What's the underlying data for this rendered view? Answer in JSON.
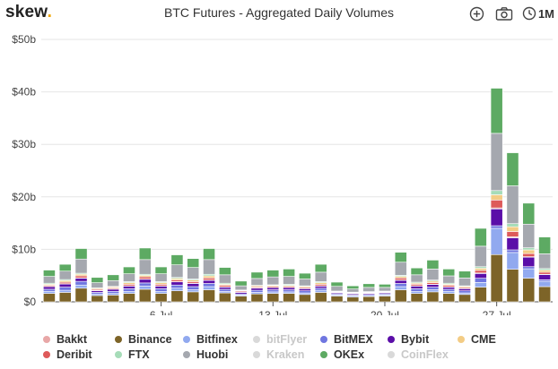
{
  "header": {
    "logo_text": "skew",
    "logo_dot": ".",
    "title": "BTC Futures - Aggregated Daily Volumes",
    "range_label": "1M",
    "icons": [
      "plus-circle-icon",
      "camera-icon",
      "clock-icon"
    ]
  },
  "colors": {
    "Bakkt": "#e8a7a7",
    "Binance": "#7d6428",
    "Bitfinex": "#91a9ef",
    "bitFlyer": "#d9d9d9",
    "BitMEX": "#6f76e0",
    "Bybit": "#5b0ea8",
    "CME": "#f3cc85",
    "Deribit": "#de5a5a",
    "FTX": "#a6dcb8",
    "Huobi": "#a5a8af",
    "Kraken": "#d9d9d9",
    "OKEx": "#5daa63",
    "CoinFlex": "#d9d9d9"
  },
  "legend": {
    "row1": [
      {
        "name": "Bakkt",
        "hidden": false
      },
      {
        "name": "Binance",
        "hidden": false
      },
      {
        "name": "Bitfinex",
        "hidden": false
      },
      {
        "name": "bitFlyer",
        "hidden": true
      },
      {
        "name": "BitMEX",
        "hidden": false
      },
      {
        "name": "Bybit",
        "hidden": false
      },
      {
        "name": "CME",
        "hidden": false
      }
    ],
    "row2": [
      {
        "name": "Deribit",
        "hidden": false
      },
      {
        "name": "FTX",
        "hidden": false
      },
      {
        "name": "Huobi",
        "hidden": false
      },
      {
        "name": "Kraken",
        "hidden": true
      },
      {
        "name": "OKEx",
        "hidden": false
      },
      {
        "name": "CoinFlex",
        "hidden": true
      }
    ]
  },
  "chart_data": {
    "type": "bar",
    "stacked": true,
    "title": "BTC Futures - Aggregated Daily Volumes",
    "x_tick_labels": [
      "6 Jul",
      "13 Jul",
      "20 Jul",
      "27 Jul"
    ],
    "x_tick_indices": [
      7,
      14,
      21,
      28
    ],
    "y_tick_labels": [
      "$0",
      "$10b",
      "$20b",
      "$30b",
      "$40b",
      "$50b"
    ],
    "ylim": [
      0,
      50
    ],
    "grid": "horizontal",
    "legend_position": "bottom",
    "stack_order": [
      "Binance",
      "Bitfinex",
      "BitMEX",
      "Bybit",
      "Bakkt",
      "Deribit",
      "CME",
      "FTX",
      "Huobi",
      "OKEx"
    ],
    "series": [
      {
        "name": "Binance",
        "values": [
          1.6,
          1.8,
          2.6,
          1.2,
          1.3,
          1.6,
          2.4,
          1.6,
          2.1,
          1.9,
          2.3,
          1.7,
          1.1,
          1.5,
          1.6,
          1.6,
          1.4,
          1.8,
          1.1,
          0.9,
          1.0,
          1.1,
          2.3,
          1.6,
          1.9,
          1.6,
          1.4,
          2.8,
          9.0,
          6.2,
          4.5,
          2.9
        ]
      },
      {
        "name": "Bitfinex",
        "values": [
          0.4,
          0.4,
          0.6,
          0.3,
          0.3,
          0.4,
          0.6,
          0.4,
          0.5,
          0.4,
          0.6,
          0.3,
          0.2,
          0.3,
          0.3,
          0.3,
          0.3,
          0.4,
          0.2,
          0.2,
          0.2,
          0.2,
          0.6,
          0.4,
          0.4,
          0.4,
          0.3,
          0.9,
          5.0,
          3.2,
          1.8,
          1.0
        ]
      },
      {
        "name": "BitMEX",
        "values": [
          0.4,
          0.6,
          0.7,
          0.3,
          0.4,
          0.5,
          0.6,
          0.5,
          0.6,
          0.6,
          0.6,
          0.4,
          0.2,
          0.4,
          0.4,
          0.4,
          0.4,
          0.4,
          0.2,
          0.2,
          0.2,
          0.2,
          0.6,
          0.5,
          0.5,
          0.4,
          0.4,
          0.8,
          0.5,
          0.5,
          0.4,
          0.3
        ]
      },
      {
        "name": "Bybit",
        "values": [
          0.5,
          0.6,
          0.6,
          0.3,
          0.4,
          0.5,
          0.7,
          0.5,
          0.6,
          0.6,
          0.6,
          0.4,
          0.3,
          0.4,
          0.4,
          0.4,
          0.4,
          0.4,
          0.2,
          0.2,
          0.2,
          0.2,
          0.6,
          0.5,
          0.5,
          0.4,
          0.4,
          0.9,
          3.2,
          2.3,
          1.8,
          1.0
        ]
      },
      {
        "name": "Bakkt",
        "values": [
          0.05,
          0.05,
          0.05,
          0.05,
          0.05,
          0.05,
          0.05,
          0.05,
          0.05,
          0.05,
          0.05,
          0.05,
          0.05,
          0.05,
          0.05,
          0.05,
          0.05,
          0.05,
          0.05,
          0.05,
          0.05,
          0.05,
          0.05,
          0.05,
          0.05,
          0.05,
          0.05,
          0.1,
          0.2,
          0.2,
          0.1,
          0.05
        ]
      },
      {
        "name": "Deribit",
        "values": [
          0.2,
          0.3,
          0.4,
          0.2,
          0.2,
          0.3,
          0.4,
          0.3,
          0.3,
          0.3,
          0.4,
          0.3,
          0.2,
          0.2,
          0.2,
          0.2,
          0.2,
          0.3,
          0.1,
          0.1,
          0.1,
          0.1,
          0.4,
          0.3,
          0.3,
          0.3,
          0.2,
          0.5,
          1.5,
          1.0,
          0.6,
          0.4
        ]
      },
      {
        "name": "CME",
        "values": [
          0.2,
          0.3,
          0.3,
          0.2,
          0.2,
          0.3,
          0.3,
          0.3,
          0.3,
          0.3,
          0.4,
          0.2,
          0.1,
          0.2,
          0.2,
          0.2,
          0.2,
          0.3,
          0.1,
          0.1,
          0.1,
          0.1,
          0.3,
          0.2,
          0.3,
          0.2,
          0.2,
          0.4,
          1.0,
          0.9,
          0.7,
          0.4
        ]
      },
      {
        "name": "FTX",
        "values": [
          0.2,
          0.2,
          0.2,
          0.1,
          0.1,
          0.2,
          0.2,
          0.2,
          0.2,
          0.2,
          0.3,
          0.2,
          0.1,
          0.1,
          0.1,
          0.2,
          0.1,
          0.2,
          0.1,
          0.1,
          0.1,
          0.1,
          0.2,
          0.2,
          0.2,
          0.2,
          0.1,
          0.3,
          0.8,
          0.6,
          0.4,
          0.3
        ]
      },
      {
        "name": "Huobi",
        "values": [
          1.3,
          1.6,
          2.7,
          1.0,
          1.1,
          1.5,
          2.8,
          1.5,
          2.4,
          2.2,
          2.8,
          1.6,
          0.8,
          1.3,
          1.5,
          1.5,
          1.3,
          1.8,
          0.9,
          0.6,
          0.8,
          0.7,
          2.5,
          1.4,
          2.1,
          1.4,
          1.5,
          3.9,
          10.9,
          7.2,
          4.5,
          2.8
        ]
      },
      {
        "name": "OKEx",
        "values": [
          1.2,
          1.3,
          2.0,
          1.0,
          1.1,
          1.3,
          2.2,
          1.3,
          1.9,
          1.7,
          2.1,
          1.4,
          0.9,
          1.2,
          1.3,
          1.4,
          1.1,
          1.5,
          0.8,
          0.6,
          0.7,
          0.6,
          1.9,
          1.3,
          1.7,
          1.3,
          1.3,
          3.4,
          8.6,
          6.3,
          4.0,
          3.2
        ]
      }
    ]
  }
}
